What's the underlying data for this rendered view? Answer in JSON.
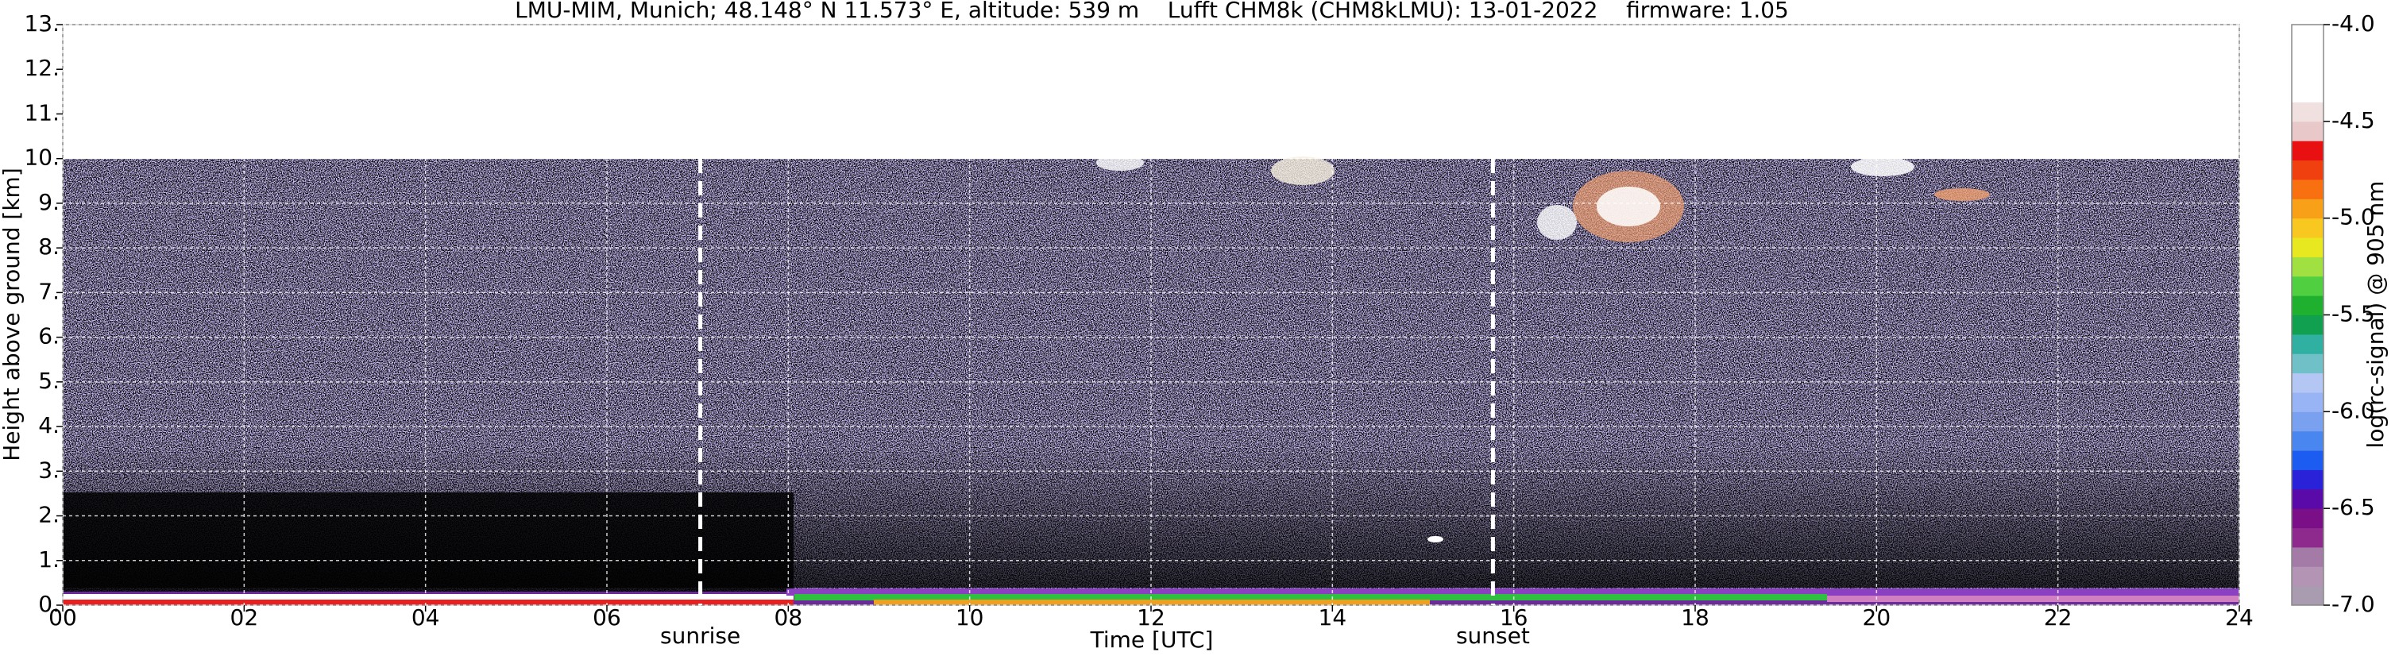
{
  "chart_data": {
    "type": "heatmap",
    "title": "LMU-MIM, Munich; 48.148° N 11.573° E, altitude: 539 m    Lufft CHM8k (CHM8kLMU): 13-01-2022    firmware: 1.05",
    "x_label": "Time [UTC]",
    "y_label": "Height above ground [km]",
    "xlim": [
      0,
      24
    ],
    "xticks": [
      {
        "value": 0,
        "label": "00"
      },
      {
        "value": 2,
        "label": "02"
      },
      {
        "value": 4,
        "label": "04"
      },
      {
        "value": 6,
        "label": "06"
      },
      {
        "value": 8,
        "label": "08"
      },
      10,
      12,
      14,
      16,
      18,
      20,
      22,
      24
    ],
    "ylim": [
      0,
      13
    ],
    "yticks": [
      {
        "value": 0,
        "label": "0."
      },
      {
        "value": 1,
        "label": "1."
      },
      {
        "value": 2,
        "label": "2."
      },
      {
        "value": 3,
        "label": "3."
      },
      {
        "value": 4,
        "label": "4."
      },
      {
        "value": 5,
        "label": "5."
      },
      {
        "value": 6,
        "label": "6."
      },
      {
        "value": 7,
        "label": "7."
      },
      {
        "value": 8,
        "label": "8."
      },
      {
        "value": 9,
        "label": "9."
      },
      {
        "value": 10,
        "label": "10."
      },
      {
        "value": 11,
        "label": "11."
      },
      {
        "value": 12,
        "label": "12."
      },
      {
        "value": 13,
        "label": "13."
      }
    ],
    "grid": true,
    "annotations": [
      {
        "label": "sunrise",
        "x": 7.03
      },
      {
        "label": "sunset",
        "x": 15.77
      }
    ],
    "colorbar": {
      "label": "log(rc-signal) @ 905 nm",
      "clim": [
        -7,
        -4
      ],
      "ticks": [
        {
          "value": -7,
          "label": "-7.0"
        },
        -6.5,
        {
          "value": -6,
          "label": "-6.0"
        },
        -5.5,
        {
          "value": -5,
          "label": "-5.0"
        },
        -4.5,
        {
          "value": -4,
          "label": "-4.0"
        }
      ],
      "colors": [
        "#a99bb0",
        "#b394b4",
        "#a47aa6",
        "#8e2a8e",
        "#7a0f88",
        "#5a0aa8",
        "#2a22d8",
        "#1d5cf0",
        "#4a86f0",
        "#7aa0f0",
        "#98b4f4",
        "#b4c6f4",
        "#70c0c8",
        "#30b0a0",
        "#10a050",
        "#20b030",
        "#50d040",
        "#a0e040",
        "#e8e820",
        "#f8c820",
        "#f8a018",
        "#f87010",
        "#f04010",
        "#e81010",
        "#e8c8c8",
        "#f0e0e0",
        "#ffffff",
        "#ffffff",
        "#ffffff",
        "#ffffff"
      ]
    }
  }
}
